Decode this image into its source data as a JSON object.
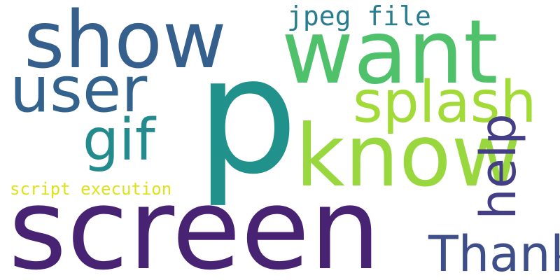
{
  "words": {
    "p": {
      "text": "p",
      "color": "#21918c"
    },
    "screen": {
      "text": "screen",
      "color": "#482374"
    },
    "want": {
      "text": "want",
      "color": "#4fc16b"
    },
    "show": {
      "text": "show",
      "color": "#355f8d"
    },
    "know": {
      "text": "know",
      "color": "#98d83e"
    },
    "user": {
      "text": "user",
      "color": "#33638d"
    },
    "splash": {
      "text": "splash",
      "color": "#a2da37"
    },
    "gif": {
      "text": "gif",
      "color": "#238a8d"
    },
    "thank": {
      "text": "Thank",
      "color": "#3d4e8a"
    },
    "help": {
      "text": "help",
      "color": "#433e85"
    },
    "jpeg_file": {
      "text": "jpeg file",
      "color": "#287d8e"
    },
    "script_execution": {
      "text": "script execution",
      "color": "#dde318"
    }
  }
}
